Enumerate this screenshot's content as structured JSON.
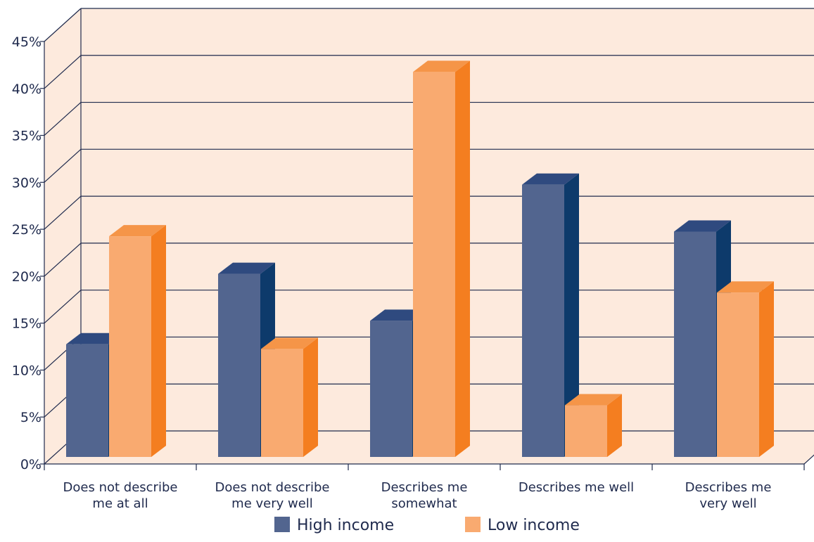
{
  "chart_data": {
    "type": "bar",
    "title": "",
    "xlabel": "",
    "ylabel": "",
    "ylim": [
      0,
      45
    ],
    "y_ticks": [
      "0%",
      "5%",
      "10%",
      "15%",
      "20%",
      "25%",
      "30%",
      "35%",
      "40%",
      "45%"
    ],
    "grid": true,
    "three_d": true,
    "legend_position": "bottom",
    "categories": [
      [
        "Does not describe",
        "me at all"
      ],
      [
        "Does not describe",
        "me very well"
      ],
      [
        "Describes me",
        "somewhat"
      ],
      [
        "Describes me well"
      ],
      [
        "Describes me",
        "very well"
      ]
    ],
    "series": [
      {
        "name": "High income",
        "values": [
          12,
          19.5,
          14.5,
          29,
          24
        ],
        "colors": {
          "front": "#52658f",
          "side": "#0d3a6b",
          "top": "#2f4a7f"
        }
      },
      {
        "name": "Low income",
        "values": [
          23.5,
          11.5,
          41,
          5.5,
          17.5
        ],
        "colors": {
          "front": "#f9aa70",
          "side": "#f47e20",
          "top": "#f59548"
        }
      }
    ],
    "plot_colors": {
      "background": "#fdeadd",
      "grid": "#1f2a4d"
    }
  }
}
